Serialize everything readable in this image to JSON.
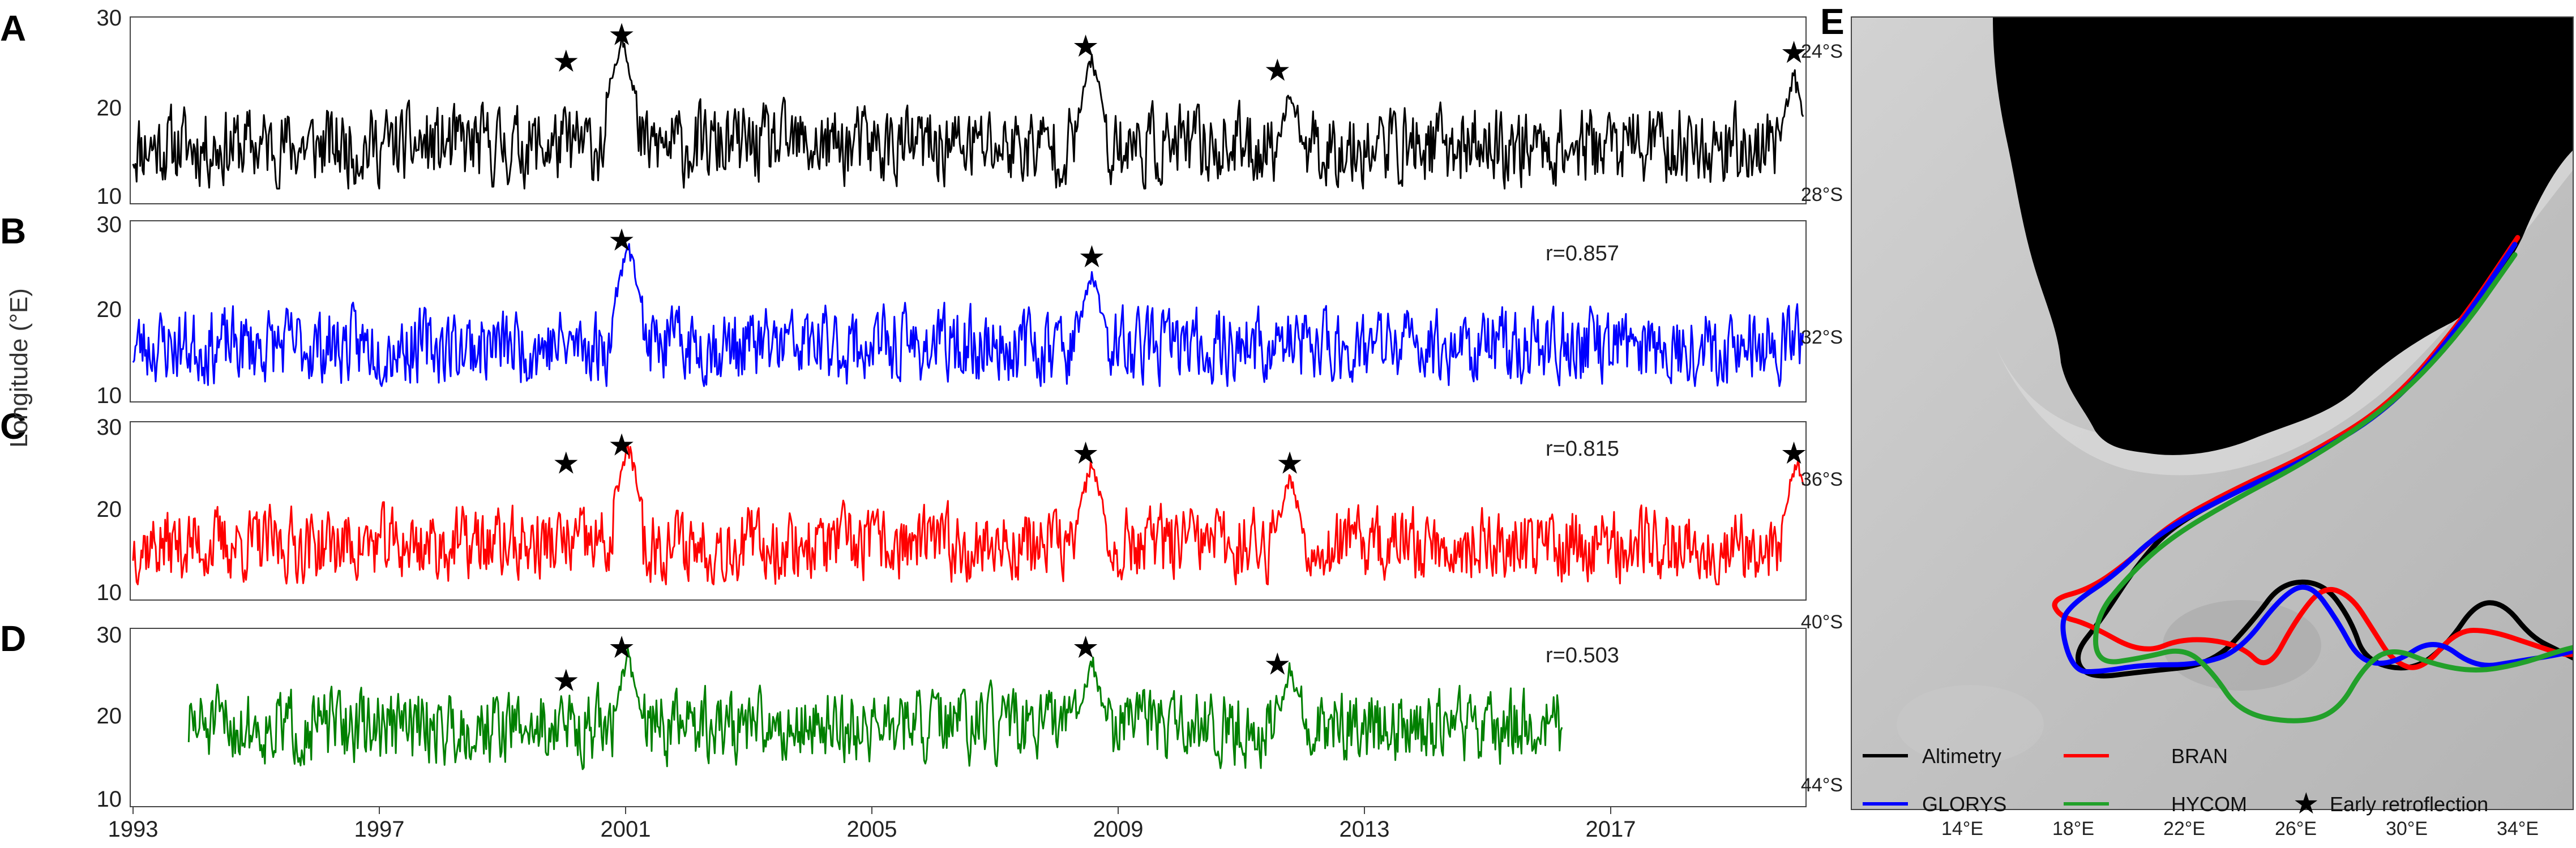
{
  "figure": {
    "panel_letters": [
      "A",
      "B",
      "C",
      "D",
      "E"
    ],
    "ylabel": "Longitude (°E)",
    "x_ticks": [
      "1993",
      "1997",
      "2001",
      "2005",
      "2009",
      "2013",
      "2017"
    ],
    "y_ticks": [
      "30",
      "20",
      "10"
    ]
  },
  "chart_data": [
    {
      "panel": "A",
      "type": "line",
      "name": "Altimetry",
      "color": "#000000",
      "x_range": [
        1993,
        2020
      ],
      "ylim": [
        10,
        30
      ],
      "start": 1993.0,
      "end": 2020.0,
      "r": "",
      "base_value": 16,
      "seed": 11,
      "peaks": [
        {
          "year": 2000.9,
          "value": 28.5
        },
        {
          "year": 2008.5,
          "value": 26.0
        },
        {
          "year": 2011.7,
          "value": 22.0
        },
        {
          "year": 2019.85,
          "value": 24.0
        }
      ],
      "stars": [
        {
          "year": 2000.0,
          "value": 25.5
        },
        {
          "year": 2000.9,
          "value": 28.5
        },
        {
          "year": 2008.4,
          "value": 27.2
        },
        {
          "year": 2011.5,
          "value": 24.5
        },
        {
          "year": 2019.85,
          "value": 26.5
        }
      ]
    },
    {
      "panel": "B",
      "type": "line",
      "name": "GLORYS",
      "color": "#0000ff",
      "x_range": [
        1993,
        2020
      ],
      "ylim": [
        10,
        30
      ],
      "start": 1993.0,
      "end": 2020.0,
      "r": "r=0.857",
      "base_value": 16,
      "seed": 23,
      "peaks": [
        {
          "year": 2001.0,
          "value": 28.0
        },
        {
          "year": 2008.5,
          "value": 24.5
        }
      ],
      "stars": [
        {
          "year": 2000.9,
          "value": 28.5
        },
        {
          "year": 2008.5,
          "value": 26.5
        }
      ]
    },
    {
      "panel": "C",
      "type": "line",
      "name": "BRAN",
      "color": "#ff0000",
      "x_range": [
        1993,
        2020
      ],
      "ylim": [
        10,
        30
      ],
      "start": 1993.0,
      "end": 2020.0,
      "r": "r=0.815",
      "base_value": 16,
      "seed": 37,
      "peaks": [
        {
          "year": 2001.0,
          "value": 28.0
        },
        {
          "year": 2008.5,
          "value": 26.0
        },
        {
          "year": 2011.7,
          "value": 24.5
        },
        {
          "year": 2019.9,
          "value": 26.5
        }
      ],
      "stars": [
        {
          "year": 2000.0,
          "value": 25.8
        },
        {
          "year": 2000.9,
          "value": 28.0
        },
        {
          "year": 2008.4,
          "value": 27.0
        },
        {
          "year": 2011.7,
          "value": 25.8
        },
        {
          "year": 2019.85,
          "value": 27.0
        }
      ]
    },
    {
      "panel": "D",
      "type": "line",
      "name": "HYCOM",
      "color": "#008000",
      "x_range": [
        1993,
        2020
      ],
      "ylim": [
        10,
        30
      ],
      "start": 1993.9,
      "end": 2016.1,
      "r": "r=0.503",
      "base_value": 19,
      "seed": 51,
      "peaks": [
        {
          "year": 2001.0,
          "value": 27.5
        },
        {
          "year": 2008.5,
          "value": 27.0
        },
        {
          "year": 2011.7,
          "value": 26.0
        }
      ],
      "stars": [
        {
          "year": 2000.0,
          "value": 24.5
        },
        {
          "year": 2000.9,
          "value": 28.5
        },
        {
          "year": 2008.4,
          "value": 28.5
        },
        {
          "year": 2011.5,
          "value": 26.5
        }
      ]
    },
    {
      "panel": "E",
      "type": "map",
      "lon_ticks": [
        "14°E",
        "18°E",
        "22°E",
        "26°E",
        "30°E",
        "34°E"
      ],
      "lat_ticks": [
        "24°S",
        "28°S",
        "32°S",
        "36°S",
        "40°S",
        "44°S"
      ],
      "lon_range": [
        10,
        36
      ],
      "lat_range": [
        -44,
        -21
      ],
      "legend": [
        {
          "label": "Altimetry",
          "color": "#000000",
          "marker": "line"
        },
        {
          "label": "BRAN",
          "color": "#ff0000",
          "marker": "line"
        },
        {
          "label": "GLORYS",
          "color": "#0000ff",
          "marker": "line"
        },
        {
          "label": "HYCOM",
          "color": "#22a02a",
          "marker": "line"
        },
        {
          "label": "Early retroflection",
          "color": "#000000",
          "marker": "star"
        }
      ],
      "series": [
        {
          "name": "Altimetry",
          "color": "#000000",
          "points": [
            [
              33.8,
              -27.7
            ],
            [
              31.8,
              -30.1
            ],
            [
              29.5,
              -32.3
            ],
            [
              26.5,
              -33.8
            ],
            [
              23.8,
              -34.8
            ],
            [
              21.5,
              -35.8
            ],
            [
              20.2,
              -37.0
            ],
            [
              19.0,
              -38.5
            ],
            [
              18.0,
              -39.5
            ],
            [
              18.5,
              -40.2
            ],
            [
              20.5,
              -40.0
            ],
            [
              23.0,
              -39.8
            ],
            [
              24.5,
              -38.5
            ],
            [
              25.5,
              -37.4
            ],
            [
              27.0,
              -37.4
            ],
            [
              28.0,
              -38.5
            ],
            [
              28.5,
              -39.7
            ],
            [
              30.2,
              -40.0
            ],
            [
              31.5,
              -39.2
            ],
            [
              32.5,
              -38.0
            ],
            [
              33.5,
              -38.0
            ],
            [
              34.5,
              -39.0
            ],
            [
              35.5,
              -39.4
            ],
            [
              36.0,
              -39.6
            ]
          ]
        },
        {
          "name": "BRAN",
          "color": "#ff0000",
          "points": [
            [
              34.0,
              -27.4
            ],
            [
              32.0,
              -29.8
            ],
            [
              29.5,
              -32.2
            ],
            [
              26.5,
              -33.7
            ],
            [
              23.8,
              -34.7
            ],
            [
              21.5,
              -35.7
            ],
            [
              20.0,
              -36.8
            ],
            [
              18.6,
              -37.6
            ],
            [
              17.2,
              -37.9
            ],
            [
              17.5,
              -38.4
            ],
            [
              18.5,
              -38.6
            ],
            [
              20.5,
              -39.5
            ],
            [
              22.0,
              -39.0
            ],
            [
              24.0,
              -39.2
            ],
            [
              25.0,
              -40.0
            ],
            [
              26.0,
              -38.5
            ],
            [
              27.0,
              -37.5
            ],
            [
              28.0,
              -37.8
            ],
            [
              28.8,
              -38.8
            ],
            [
              29.5,
              -39.7
            ],
            [
              30.5,
              -40.0
            ],
            [
              31.8,
              -38.8
            ],
            [
              33.0,
              -38.8
            ],
            [
              34.5,
              -39.2
            ],
            [
              35.6,
              -39.5
            ],
            [
              36.0,
              -39.5
            ]
          ]
        },
        {
          "name": "GLORYS",
          "color": "#0000ff",
          "points": [
            [
              33.9,
              -27.6
            ],
            [
              31.9,
              -30.0
            ],
            [
              29.5,
              -32.3
            ],
            [
              26.5,
              -33.8
            ],
            [
              23.8,
              -34.8
            ],
            [
              21.0,
              -36.0
            ],
            [
              19.5,
              -37.2
            ],
            [
              18.0,
              -38.0
            ],
            [
              17.5,
              -38.6
            ],
            [
              18.0,
              -40.0
            ],
            [
              19.0,
              -40.0
            ],
            [
              20.5,
              -39.8
            ],
            [
              22.5,
              -39.8
            ],
            [
              24.0,
              -39.4
            ],
            [
              25.5,
              -37.8
            ],
            [
              26.5,
              -37.4
            ],
            [
              27.5,
              -38.5
            ],
            [
              28.3,
              -39.7
            ],
            [
              29.5,
              -39.8
            ],
            [
              31.0,
              -39.0
            ],
            [
              32.5,
              -39.9
            ],
            [
              34.0,
              -39.7
            ],
            [
              35.5,
              -39.5
            ],
            [
              36.0,
              -39.4
            ]
          ]
        },
        {
          "name": "HYCOM",
          "color": "#22a02a",
          "points": [
            [
              33.9,
              -27.9
            ],
            [
              31.8,
              -30.3
            ],
            [
              29.4,
              -32.3
            ],
            [
              26.4,
              -33.9
            ],
            [
              23.8,
              -35.0
            ],
            [
              21.5,
              -36.1
            ],
            [
              20.0,
              -37.2
            ],
            [
              18.8,
              -38.4
            ],
            [
              18.8,
              -39.8
            ],
            [
              20.5,
              -39.6
            ],
            [
              22.0,
              -39.3
            ],
            [
              23.0,
              -40.0
            ],
            [
              24.0,
              -41.2
            ],
            [
              26.0,
              -41.5
            ],
            [
              27.5,
              -41.2
            ],
            [
              28.5,
              -39.8
            ],
            [
              29.5,
              -39.3
            ],
            [
              31.0,
              -39.8
            ],
            [
              32.5,
              -40.0
            ],
            [
              34.0,
              -39.8
            ],
            [
              35.5,
              -39.4
            ],
            [
              36.0,
              -39.3
            ]
          ]
        }
      ]
    }
  ]
}
